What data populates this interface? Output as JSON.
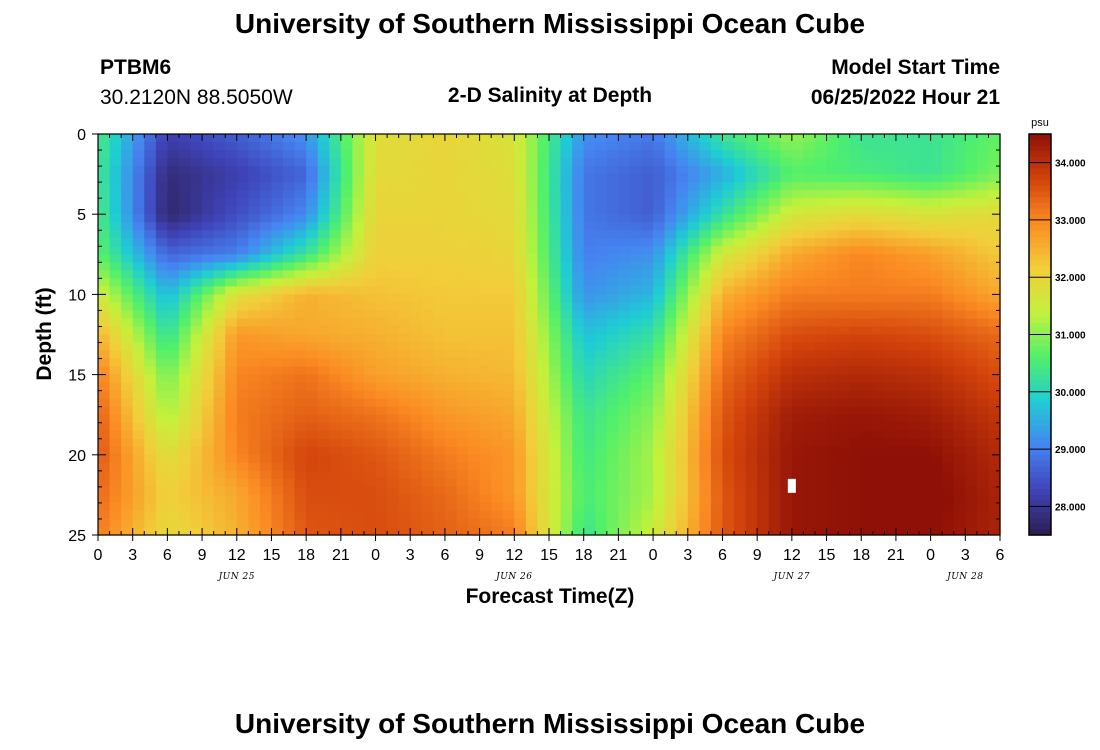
{
  "header": {
    "title": "University of Southern Mississippi Ocean Cube",
    "station": "PTBM6",
    "coords": "30.2120N  88.5050W",
    "subtitle": "2-D Salinity at Depth",
    "model_start_label": "Model Start Time",
    "model_start_value": "06/25/2022 Hour 21"
  },
  "footer": {
    "title": "University of Southern Mississippi Ocean Cube"
  },
  "chart_data": {
    "type": "heatmap",
    "title": "2-D Salinity at Depth",
    "xlabel": "Forecast Time(Z)",
    "ylabel": "Depth (ft)",
    "x_tick_labels": [
      "0",
      "3",
      "6",
      "9",
      "12",
      "15",
      "18",
      "21",
      "0",
      "3",
      "6",
      "9",
      "12",
      "15",
      "18",
      "21",
      "0",
      "3",
      "6",
      "9",
      "12",
      "15",
      "18",
      "21",
      "0",
      "3",
      "6"
    ],
    "x_range_hours_from_jun25_00": [
      0,
      78
    ],
    "date_labels": [
      {
        "text": "JUN 25",
        "hour": 12
      },
      {
        "text": "JUN 26",
        "hour": 36
      },
      {
        "text": "JUN 27",
        "hour": 60
      },
      {
        "text": "JUN 28",
        "hour": 75
      }
    ],
    "y_tick_labels": [
      "0",
      "5",
      "10",
      "15",
      "20",
      "25"
    ],
    "ylim": [
      0,
      25
    ],
    "y_inverted": true,
    "colorbar": {
      "unit": "psu",
      "min": 27.5,
      "max": 34.5,
      "tick_labels": [
        "34.000",
        "33.000",
        "32.000",
        "31.000",
        "30.000",
        "29.000",
        "28.000"
      ],
      "tick_values": [
        34,
        33,
        32,
        31,
        30,
        29,
        28
      ],
      "colors": [
        "#2d1e4f",
        "#3f43b8",
        "#4684f2",
        "#1fcdd3",
        "#52f06a",
        "#c4f13b",
        "#f2cd3a",
        "#fb8b23",
        "#d2420b",
        "#8f1006"
      ]
    },
    "approx_grid": {
      "description": "Approximate salinity (psu) read from color, rows = depth, cols = forecast hour",
      "depths_ft": [
        0,
        2.5,
        5,
        7.5,
        10,
        12.5,
        15,
        17.5,
        20,
        22.5,
        25
      ],
      "hours": [
        0,
        6,
        12,
        18,
        24,
        30,
        36,
        42,
        48,
        54,
        60,
        66,
        72,
        78
      ],
      "values": [
        [
          30.5,
          28.2,
          28.6,
          29.2,
          31.8,
          32.0,
          31.7,
          29.2,
          28.9,
          30.3,
          31.1,
          30.3,
          30.3,
          30.7
        ],
        [
          30.4,
          27.8,
          28.2,
          28.7,
          31.9,
          32.0,
          31.8,
          28.9,
          28.6,
          29.5,
          30.6,
          30.5,
          30.3,
          30.9
        ],
        [
          30.5,
          27.7,
          28.4,
          29.1,
          32.0,
          32.0,
          31.9,
          28.9,
          28.6,
          30.2,
          31.6,
          31.9,
          31.7,
          31.9
        ],
        [
          30.7,
          28.7,
          29.0,
          30.3,
          32.1,
          32.1,
          32.0,
          29.0,
          29.2,
          31.6,
          32.6,
          33.0,
          32.7,
          32.2
        ],
        [
          31.6,
          29.6,
          31.8,
          32.5,
          32.3,
          32.2,
          32.2,
          29.2,
          29.6,
          32.5,
          33.1,
          33.1,
          33.1,
          32.6
        ],
        [
          32.5,
          30.2,
          32.8,
          32.6,
          32.5,
          32.3,
          32.3,
          29.7,
          30.2,
          33.0,
          33.6,
          33.7,
          33.6,
          33.3
        ],
        [
          33.1,
          30.8,
          33.0,
          33.2,
          32.7,
          32.5,
          32.4,
          30.0,
          30.7,
          33.3,
          34.0,
          34.1,
          34.0,
          33.6
        ],
        [
          33.4,
          31.2,
          33.1,
          33.4,
          33.2,
          32.8,
          32.6,
          30.3,
          31.0,
          33.5,
          34.3,
          34.4,
          34.3,
          33.9
        ],
        [
          33.5,
          31.8,
          33.0,
          33.7,
          33.5,
          33.1,
          32.8,
          30.4,
          31.2,
          33.6,
          34.4,
          34.5,
          34.5,
          34.1
        ],
        [
          33.3,
          32.1,
          32.6,
          33.6,
          33.6,
          33.3,
          32.8,
          30.5,
          31.2,
          33.5,
          34.4,
          34.5,
          34.6,
          34.2
        ],
        [
          33.1,
          31.9,
          32.5,
          33.5,
          33.6,
          33.4,
          33.1,
          30.3,
          31.5,
          33.5,
          34.4,
          34.5,
          34.5,
          34.2
        ]
      ]
    }
  }
}
